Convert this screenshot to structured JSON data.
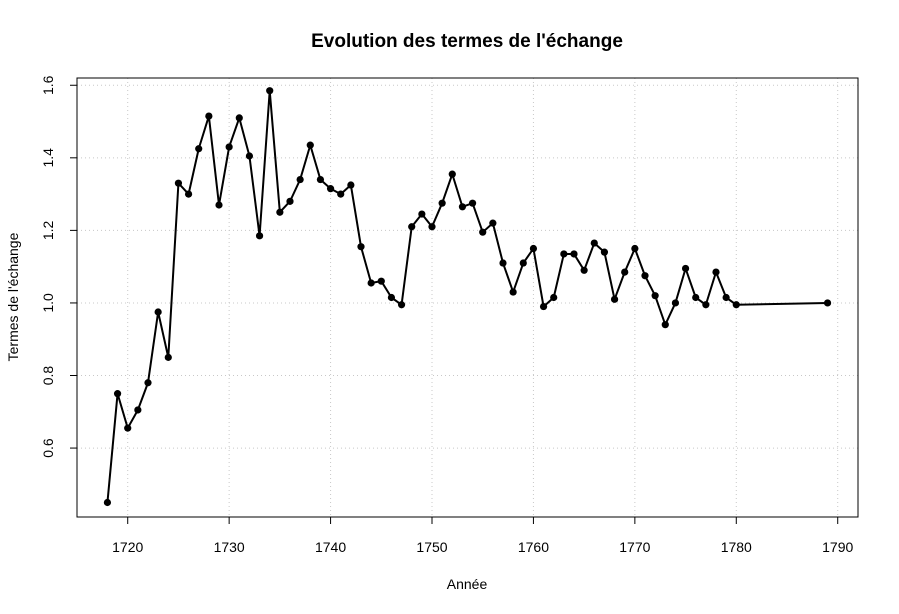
{
  "chart_data": {
    "type": "line",
    "title": "Evolution des termes de l'échange",
    "xlabel": "Année",
    "ylabel": "Termes de l'échange",
    "xlim": [
      1715,
      1792
    ],
    "ylim": [
      0.41,
      1.62
    ],
    "xticks": [
      1720,
      1730,
      1740,
      1750,
      1760,
      1770,
      1780,
      1790
    ],
    "yticks": [
      0.6,
      0.8,
      1.0,
      1.2,
      1.4,
      1.6
    ],
    "ytick_labels": [
      "0.6",
      "0.8",
      "1.0",
      "1.2",
      "1.4",
      "1.6"
    ],
    "grid": true,
    "legend": "none",
    "line_color": "#000000",
    "marker": "filled-circle",
    "series": [
      {
        "x": [
          1718,
          1719,
          1720,
          1721,
          1722,
          1723,
          1724,
          1725,
          1726,
          1727,
          1728,
          1729,
          1730,
          1731,
          1732,
          1733,
          1734,
          1735,
          1736,
          1737,
          1738,
          1739,
          1740,
          1741,
          1742,
          1743,
          1744,
          1745,
          1746,
          1747,
          1748,
          1749,
          1750,
          1751,
          1752,
          1753,
          1754,
          1755,
          1756,
          1757,
          1758,
          1759,
          1760,
          1761,
          1762,
          1763,
          1764,
          1765,
          1766,
          1767,
          1768,
          1769,
          1770,
          1771,
          1772,
          1773,
          1774,
          1775,
          1776,
          1777,
          1778,
          1779,
          1780,
          1789
        ],
        "values": [
          0.45,
          0.75,
          0.655,
          0.705,
          0.78,
          0.975,
          0.85,
          1.33,
          1.3,
          1.425,
          1.515,
          1.27,
          1.43,
          1.51,
          1.405,
          1.185,
          1.585,
          1.25,
          1.28,
          1.34,
          1.435,
          1.34,
          1.315,
          1.3,
          1.325,
          1.155,
          1.055,
          1.06,
          1.015,
          0.995,
          1.21,
          1.245,
          1.21,
          1.275,
          1.355,
          1.265,
          1.275,
          1.195,
          1.22,
          1.11,
          1.03,
          1.11,
          1.15,
          0.99,
          1.015,
          1.135,
          1.135,
          1.09,
          1.165,
          1.14,
          1.01,
          1.085,
          1.15,
          1.075,
          1.02,
          0.94,
          1.0,
          1.095,
          1.015,
          0.995,
          1.085,
          1.015,
          0.995,
          1.0
        ]
      }
    ]
  }
}
